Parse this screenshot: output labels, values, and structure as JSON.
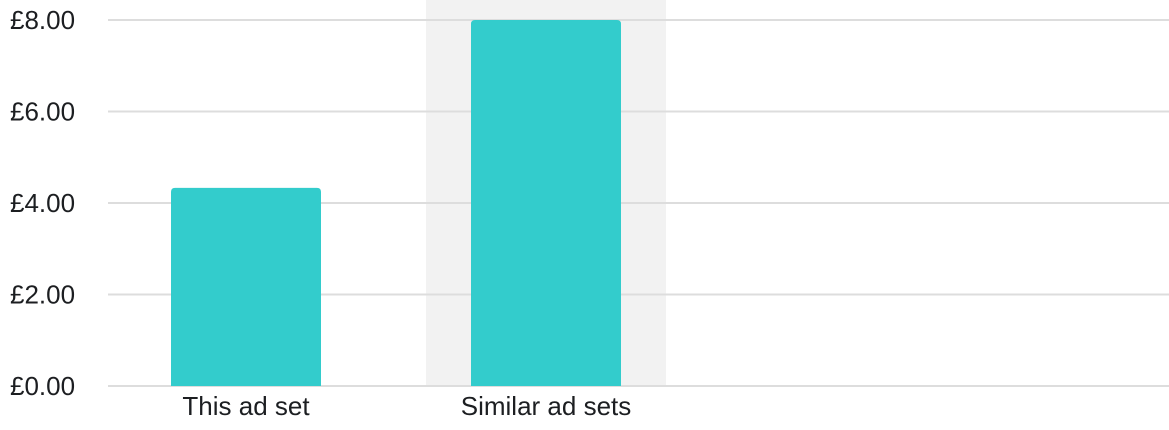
{
  "chart_data": {
    "type": "bar",
    "categories": [
      "This ad set",
      "Similar ad sets"
    ],
    "values": [
      4.33,
      8.02
    ],
    "ylim": [
      0,
      8
    ],
    "yticks": [
      0,
      2,
      4,
      6,
      8
    ],
    "ytick_labels": [
      "£0.00",
      "£2.00",
      "£4.00",
      "£6.00",
      "£8.00"
    ],
    "grid": true,
    "highlighted_category": "Similar ad sets",
    "colors": {
      "bar": "#33cccc",
      "highlight_band": "#f2f2f2",
      "gridline": "#dddddd",
      "text": "#1c1e21"
    }
  }
}
